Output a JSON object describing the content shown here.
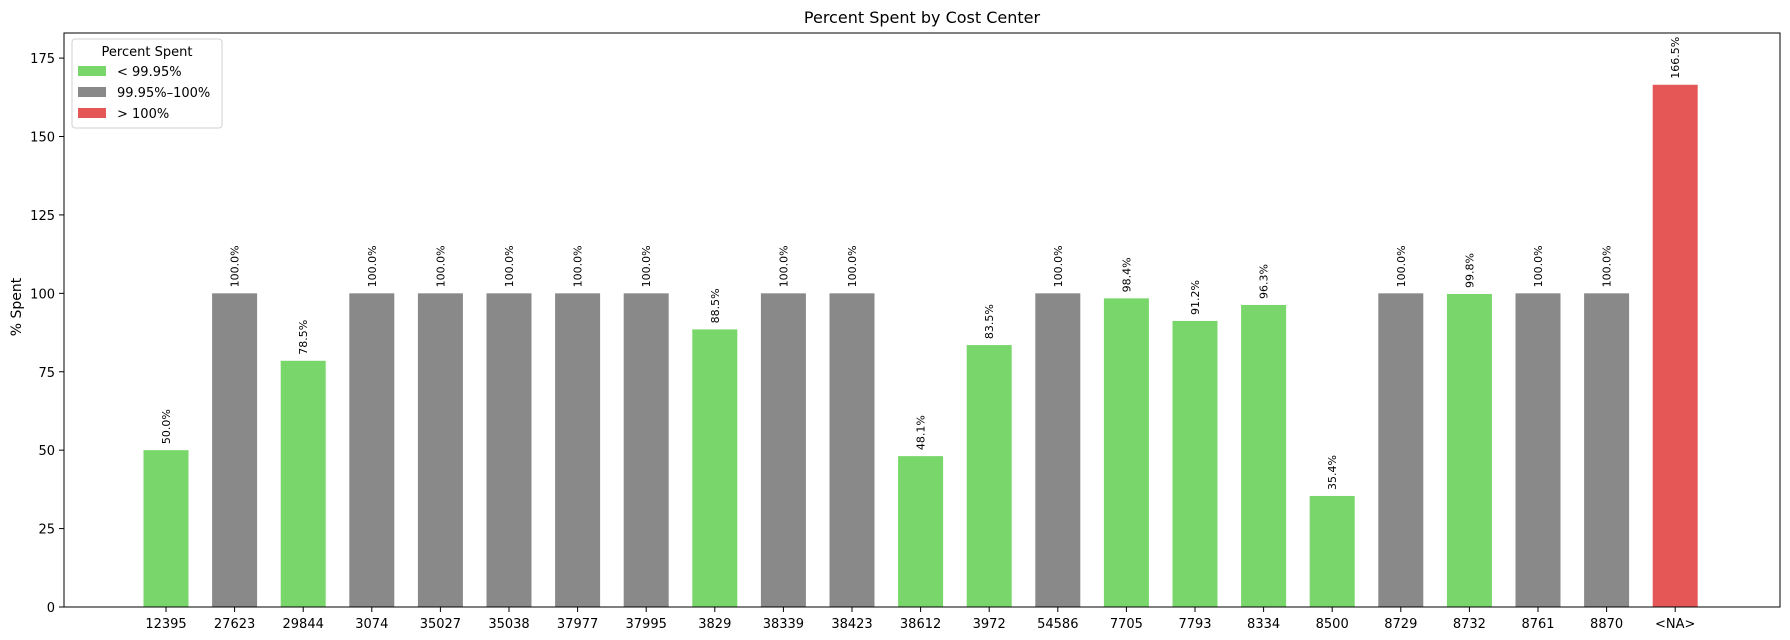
{
  "chart_data": {
    "type": "bar",
    "title": "Percent Spent by Cost Center",
    "xlabel": "",
    "ylabel": "% Spent",
    "ylim": [
      0,
      183
    ],
    "yticks": [
      0,
      25,
      50,
      75,
      100,
      125,
      150,
      175
    ],
    "grid": false,
    "legend": {
      "title": "Percent Spent",
      "position": "top-left",
      "entries": [
        {
          "label": "< 99.95%",
          "color": "#78d66a"
        },
        {
          "label": "99.95%–100%",
          "color": "#898989"
        },
        {
          "label": "> 100%",
          "color": "#e55757"
        }
      ]
    },
    "categories": [
      "12395",
      "27623",
      "29844",
      "3074",
      "35027",
      "35038",
      "37977",
      "37995",
      "3829",
      "38339",
      "38423",
      "38612",
      "3972",
      "54586",
      "7705",
      "7793",
      "8334",
      "8500",
      "8729",
      "8732",
      "8761",
      "8870",
      "<NA>"
    ],
    "values": [
      50.0,
      100.0,
      78.5,
      100.0,
      100.0,
      100.0,
      100.0,
      100.0,
      88.5,
      100.0,
      100.0,
      48.1,
      83.5,
      100.0,
      98.4,
      91.2,
      96.3,
      35.4,
      100.0,
      99.8,
      100.0,
      100.0,
      166.5
    ],
    "value_labels": [
      "50.0%",
      "100.0%",
      "78.5%",
      "100.0%",
      "100.0%",
      "100.0%",
      "100.0%",
      "100.0%",
      "88.5%",
      "100.0%",
      "100.0%",
      "48.1%",
      "83.5%",
      "100.0%",
      "98.4%",
      "91.2%",
      "96.3%",
      "35.4%",
      "100.0%",
      "99.8%",
      "100.0%",
      "100.0%",
      "166.5%"
    ],
    "bar_colors": [
      "#78d66a",
      "#898989",
      "#78d66a",
      "#898989",
      "#898989",
      "#898989",
      "#898989",
      "#898989",
      "#78d66a",
      "#898989",
      "#898989",
      "#78d66a",
      "#78d66a",
      "#898989",
      "#78d66a",
      "#78d66a",
      "#78d66a",
      "#78d66a",
      "#898989",
      "#78d66a",
      "#898989",
      "#898989",
      "#e55757"
    ]
  }
}
